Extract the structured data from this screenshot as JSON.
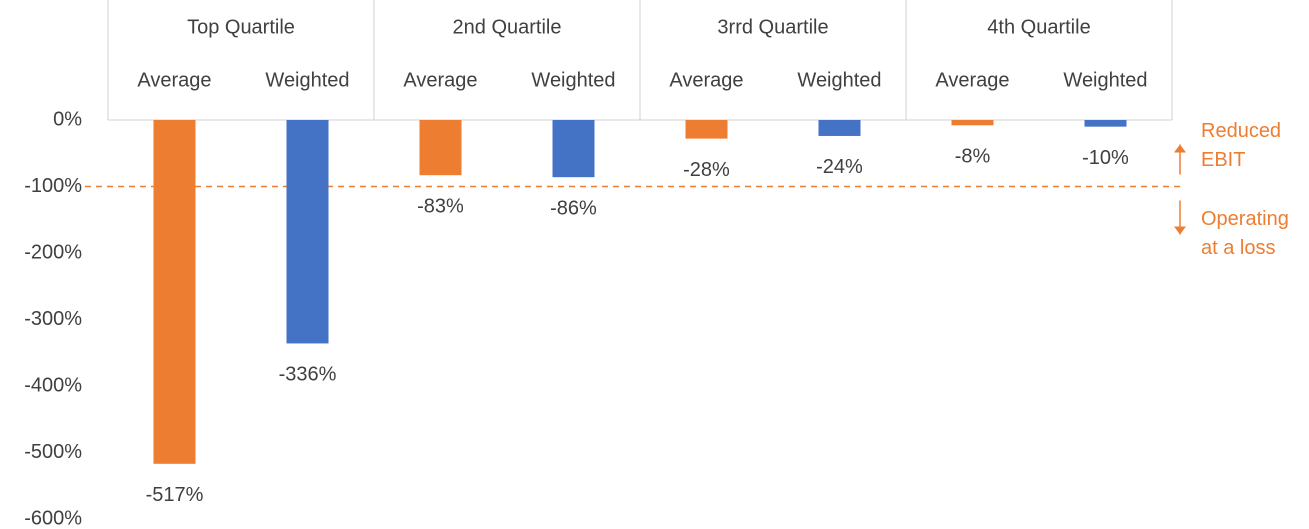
{
  "chart_data": {
    "type": "bar",
    "categories": [
      "Top Quartile",
      "2nd Quartile",
      "3rrd Quartile",
      "4th Quartile"
    ],
    "series": [
      {
        "name": "Average",
        "color": "#ed7d31",
        "values": [
          -517,
          -83,
          -28,
          -8
        ],
        "value_labels": [
          "-517%",
          "-83%",
          "-28%",
          "-8%"
        ]
      },
      {
        "name": "Weighted",
        "color": "#4472c4",
        "values": [
          -336,
          -86,
          -24,
          -10
        ],
        "value_labels": [
          "-336%",
          "-86%",
          "-24%",
          "-10%"
        ]
      }
    ],
    "ylim": [
      -600,
      0
    ],
    "yticks": [
      {
        "value": 0,
        "label": "0%"
      },
      {
        "value": -100,
        "label": "-100%"
      },
      {
        "value": -200,
        "label": "-200%"
      },
      {
        "value": -300,
        "label": "-300%"
      },
      {
        "value": -400,
        "label": "-400%"
      },
      {
        "value": -500,
        "label": "-500%"
      },
      {
        "value": -600,
        "label": "-600%"
      }
    ],
    "reference_line": {
      "value": -100,
      "color": "#ed7d31"
    },
    "annotations": [
      {
        "lines": [
          "Reduced",
          "EBIT"
        ],
        "direction": "up"
      },
      {
        "lines": [
          "Operating",
          "at a loss"
        ],
        "direction": "down"
      }
    ]
  }
}
